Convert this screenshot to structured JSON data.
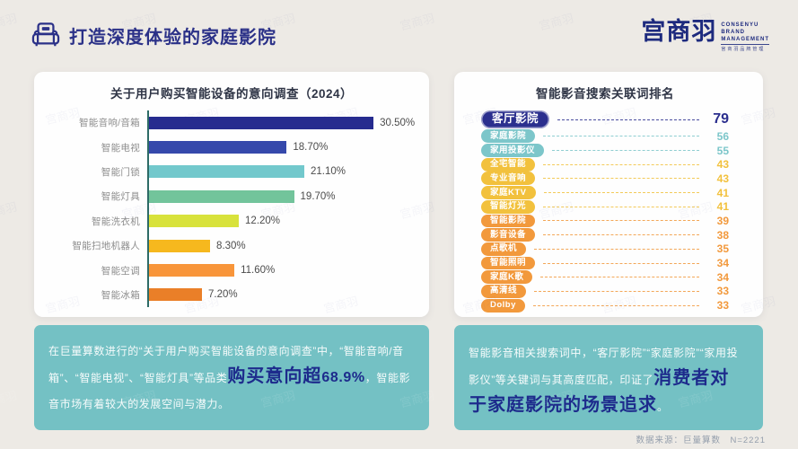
{
  "header": {
    "title": "打造深度体验的家庭影院"
  },
  "logo": {
    "name": "宫商羽",
    "lines": [
      "CONSENYU",
      "BRAND",
      "MANAGEMENT"
    ],
    "tagline": "宫商羽品牌管理"
  },
  "watermark": "宫商羽",
  "footer": {
    "source": "数据来源：巨量算数　N=2221"
  },
  "colors": {
    "accent_navy": "#2b2f8e",
    "teal_box": "#74c1c4",
    "axis": "#2d6b66",
    "highlight_text": "#1d2b8c"
  },
  "chart_data": [
    {
      "type": "bar",
      "orientation": "horizontal",
      "title": "关于用户购买智能设备的意向调查（2024）",
      "categories": [
        "智能音响/音箱",
        "智能电视",
        "智能门锁",
        "智能灯具",
        "智能洗衣机",
        "智能扫地机器人",
        "智能空调",
        "智能冰箱"
      ],
      "values": [
        30.5,
        18.7,
        21.1,
        19.7,
        12.2,
        8.3,
        11.6,
        7.2
      ],
      "value_labels": [
        "30.50%",
        "18.70%",
        "21.10%",
        "19.70%",
        "12.20%",
        "8.30%",
        "11.60%",
        "7.20%"
      ],
      "bar_colors": [
        "#262b8f",
        "#3548ab",
        "#72c8cc",
        "#72c49b",
        "#d8e23b",
        "#f6b81e",
        "#f8953a",
        "#ea7f28"
      ],
      "xlim": [
        0,
        32
      ],
      "grid": false,
      "legend": "none"
    },
    {
      "type": "table",
      "title": "智能影音搜索关联词排名",
      "tier_colors": {
        "navy": "#2b2f8e",
        "teal": "#7cc6ca",
        "yellow": "#f2c13d",
        "orange": "#f2993c"
      },
      "items": [
        {
          "label": "客厅影院",
          "value": 79,
          "tier": "navy",
          "featured": true
        },
        {
          "label": "家庭影院",
          "value": 56,
          "tier": "teal"
        },
        {
          "label": "家用投影仪",
          "value": 55,
          "tier": "teal"
        },
        {
          "label": "全宅智能",
          "value": 43,
          "tier": "yellow"
        },
        {
          "label": "专业音响",
          "value": 43,
          "tier": "yellow"
        },
        {
          "label": "家庭KTV",
          "value": 41,
          "tier": "yellow"
        },
        {
          "label": "智能灯光",
          "value": 41,
          "tier": "yellow"
        },
        {
          "label": "智能影院",
          "value": 39,
          "tier": "orange"
        },
        {
          "label": "影音设备",
          "value": 38,
          "tier": "orange"
        },
        {
          "label": "点歌机",
          "value": 35,
          "tier": "orange"
        },
        {
          "label": "智能照明",
          "value": 34,
          "tier": "orange"
        },
        {
          "label": "家庭K歌",
          "value": 34,
          "tier": "orange"
        },
        {
          "label": "高清线",
          "value": 33,
          "tier": "orange"
        },
        {
          "label": "Dolby",
          "value": 33,
          "tier": "orange"
        }
      ]
    }
  ],
  "insights": {
    "left": {
      "pre": "在巨量算数进行的“关于用户购买智能设备的意向调查”中，“智能音响/音箱”、“智能电视”、“智能灯具”等品类",
      "highlight_main": "购买意向超",
      "highlight_value": "68.9%",
      "post": "，智能影音市场有着较大的发展空间与潜力。"
    },
    "right": {
      "pre": "智能影音相关搜索词中，“客厅影院”“家庭影院”“家用投影仪”等关键词与其高度匹配，印证了",
      "highlight": "消费者对于家庭影院的场景追求",
      "post": "。"
    }
  }
}
